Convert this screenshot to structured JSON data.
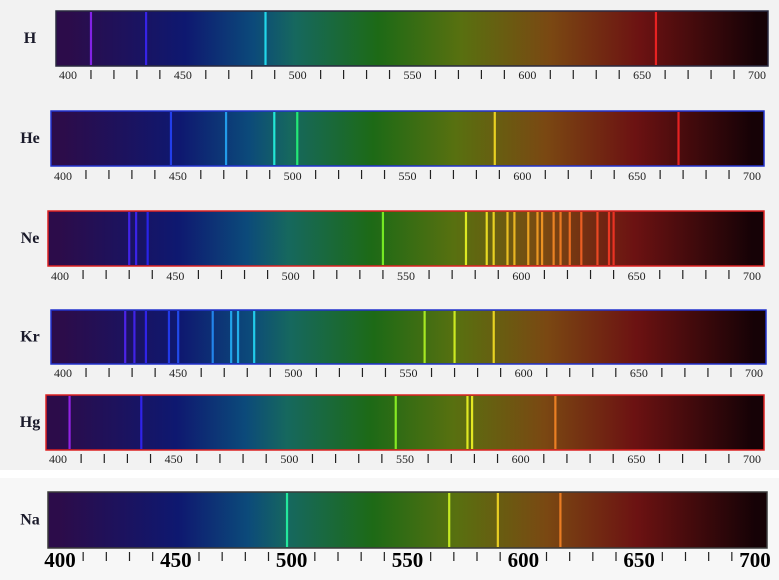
{
  "axis_ticks": [
    400,
    450,
    500,
    550,
    600,
    650,
    700
  ],
  "spectra": [
    {
      "element": "H",
      "frame_color": "#2a2a40",
      "lines": [
        410,
        434,
        486,
        656
      ]
    },
    {
      "element": "He",
      "frame_color": "#2233cc",
      "lines": [
        447,
        471,
        492,
        502,
        588,
        668
      ]
    },
    {
      "element": "Ne",
      "frame_color": "#dd2222",
      "lines": [
        430,
        433,
        438,
        540,
        576,
        585,
        588,
        594,
        597,
        603,
        607,
        609,
        614,
        617,
        621,
        626,
        633,
        638,
        640
      ]
    },
    {
      "element": "Kr",
      "frame_color": "#2233cc",
      "lines": [
        427,
        431,
        436,
        446,
        450,
        465,
        473,
        476,
        483,
        557,
        570,
        587
      ]
    },
    {
      "element": "Hg",
      "frame_color": "#dd2222",
      "lines": [
        405,
        436,
        546,
        577,
        579,
        615
      ]
    },
    {
      "element": "Na",
      "frame_color": "#3a3a3a",
      "lines": [
        498,
        568,
        589,
        616
      ]
    }
  ]
}
